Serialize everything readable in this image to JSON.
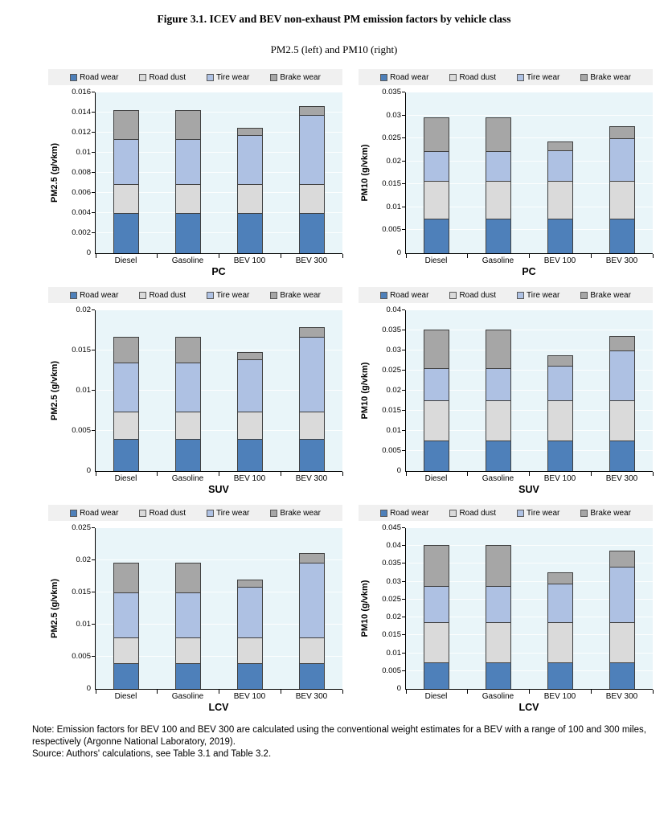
{
  "figure": {
    "title": "Figure 3.1. ICEV and BEV non-exhaust PM emission factors by vehicle class",
    "subtitle": "PM2.5 (left) and PM10 (right)",
    "note": "Note: Emission factors for BEV 100 and BEV 300 are calculated using the conventional weight estimates for a BEV with a range of 100 and 300 miles, respectively (Argonne National Laboratory, 2019).",
    "source": "Source: Authors' calculations, see Table 3.1 and Table 3.2."
  },
  "legend": [
    "Road wear",
    "Road dust",
    "Tire wear",
    "Brake wear"
  ],
  "colors": {
    "series": [
      "#4e80ba",
      "#dadada",
      "#aec1e3",
      "#a6a6a6"
    ],
    "plot_background": "#e9f5f9",
    "legend_background": "#f0f0f0",
    "segment_border": "#404040",
    "axis": "#000000"
  },
  "chart_data": [
    {
      "id": "pm25-pc",
      "type": "bar",
      "stacked": true,
      "xlabel": "PC",
      "ylabel": "PM2.5 (g/vkm)",
      "ylim": [
        0,
        0.016
      ],
      "ytick_step": 0.002,
      "grid": true,
      "legend_position": "top",
      "categories": [
        "Diesel",
        "Gasoline",
        "BEV 100",
        "BEV 300"
      ],
      "series": [
        {
          "name": "Road wear",
          "values": [
            0.004,
            0.004,
            0.004,
            0.004
          ]
        },
        {
          "name": "Road dust",
          "values": [
            0.0029,
            0.0029,
            0.0029,
            0.0029
          ]
        },
        {
          "name": "Tire wear",
          "values": [
            0.0045,
            0.0045,
            0.0049,
            0.0069
          ]
        },
        {
          "name": "Brake wear",
          "values": [
            0.0029,
            0.0029,
            0.0007,
            0.0009
          ]
        }
      ]
    },
    {
      "id": "pm10-pc",
      "type": "bar",
      "stacked": true,
      "xlabel": "PC",
      "ylabel": "PM10 (g/vkm)",
      "ylim": [
        0,
        0.035
      ],
      "ytick_step": 0.005,
      "grid": true,
      "legend_position": "top",
      "categories": [
        "Diesel",
        "Gasoline",
        "BEV 100",
        "BEV 300"
      ],
      "series": [
        {
          "name": "Road wear",
          "values": [
            0.0075,
            0.0075,
            0.0075,
            0.0075
          ]
        },
        {
          "name": "Road dust",
          "values": [
            0.0083,
            0.0083,
            0.0083,
            0.0083
          ]
        },
        {
          "name": "Tire wear",
          "values": [
            0.0064,
            0.0064,
            0.0066,
            0.0092
          ]
        },
        {
          "name": "Brake wear",
          "values": [
            0.0074,
            0.0074,
            0.0019,
            0.0027
          ]
        }
      ]
    },
    {
      "id": "pm25-suv",
      "type": "bar",
      "stacked": true,
      "xlabel": "SUV",
      "ylabel": "PM2.5 (g/vkm)",
      "ylim": [
        0,
        0.02
      ],
      "ytick_step": 0.005,
      "grid": true,
      "legend_position": "top",
      "categories": [
        "Diesel",
        "Gasoline",
        "BEV 100",
        "BEV 300"
      ],
      "series": [
        {
          "name": "Road wear",
          "values": [
            0.004,
            0.004,
            0.004,
            0.004
          ]
        },
        {
          "name": "Road dust",
          "values": [
            0.0034,
            0.0034,
            0.0034,
            0.0034
          ]
        },
        {
          "name": "Tire wear",
          "values": [
            0.0061,
            0.0061,
            0.0065,
            0.0093
          ]
        },
        {
          "name": "Brake wear",
          "values": [
            0.0032,
            0.0032,
            0.0009,
            0.0012
          ]
        }
      ]
    },
    {
      "id": "pm10-suv",
      "type": "bar",
      "stacked": true,
      "xlabel": "SUV",
      "ylabel": "PM10 (g/vkm)",
      "ylim": [
        0,
        0.04
      ],
      "ytick_step": 0.005,
      "grid": true,
      "legend_position": "top",
      "categories": [
        "Diesel",
        "Gasoline",
        "BEV 100",
        "BEV 300"
      ],
      "series": [
        {
          "name": "Road wear",
          "values": [
            0.0075,
            0.0075,
            0.0075,
            0.0075
          ]
        },
        {
          "name": "Road dust",
          "values": [
            0.0099,
            0.0099,
            0.0099,
            0.0099
          ]
        },
        {
          "name": "Tire wear",
          "values": [
            0.008,
            0.008,
            0.0086,
            0.0124
          ]
        },
        {
          "name": "Brake wear",
          "values": [
            0.0095,
            0.0095,
            0.0026,
            0.0035
          ]
        }
      ]
    },
    {
      "id": "pm25-lcv",
      "type": "bar",
      "stacked": true,
      "xlabel": "LCV",
      "ylabel": "PM2.5 (g/vkm)",
      "ylim": [
        0,
        0.025
      ],
      "ytick_step": 0.005,
      "grid": true,
      "legend_position": "top",
      "categories": [
        "Diesel",
        "Gasoline",
        "BEV 100",
        "BEV 300"
      ],
      "series": [
        {
          "name": "Road wear",
          "values": [
            0.004,
            0.004,
            0.004,
            0.004
          ]
        },
        {
          "name": "Road dust",
          "values": [
            0.004,
            0.004,
            0.004,
            0.004
          ]
        },
        {
          "name": "Tire wear",
          "values": [
            0.007,
            0.007,
            0.0079,
            0.0116
          ]
        },
        {
          "name": "Brake wear",
          "values": [
            0.0046,
            0.0046,
            0.0011,
            0.0015
          ]
        }
      ]
    },
    {
      "id": "pm10-lcv",
      "type": "bar",
      "stacked": true,
      "xlabel": "LCV",
      "ylabel": "PM10 (g/vkm)",
      "ylim": [
        0,
        0.045
      ],
      "ytick_step": 0.005,
      "grid": true,
      "legend_position": "top",
      "categories": [
        "Diesel",
        "Gasoline",
        "BEV 100",
        "BEV 300"
      ],
      "series": [
        {
          "name": "Road wear",
          "values": [
            0.0075,
            0.0075,
            0.0075,
            0.0075
          ]
        },
        {
          "name": "Road dust",
          "values": [
            0.0113,
            0.0113,
            0.0113,
            0.0113
          ]
        },
        {
          "name": "Tire wear",
          "values": [
            0.0101,
            0.0101,
            0.0108,
            0.0156
          ]
        },
        {
          "name": "Brake wear",
          "values": [
            0.0114,
            0.0114,
            0.0031,
            0.0045
          ]
        }
      ]
    }
  ]
}
